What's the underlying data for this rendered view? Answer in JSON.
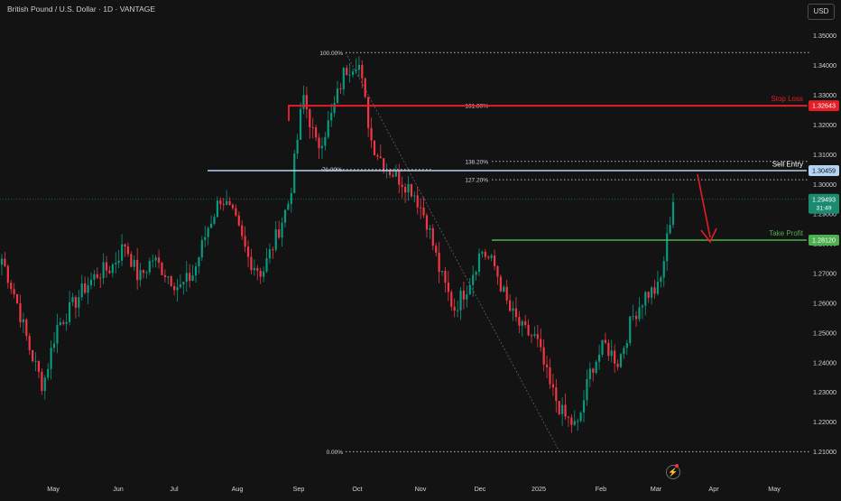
{
  "header": {
    "title": "British Pound / U.S. Dollar · 1D · VANTAGE",
    "currency_button": "USD"
  },
  "colors": {
    "background": "#131313",
    "up": "#089981",
    "down": "#f23645",
    "stop": "#e21f26",
    "entry": "#b3d4f4",
    "target": "#4caf50",
    "current": "#1b8b6f",
    "text": "#d1d4dc"
  },
  "chart_data": {
    "type": "candlestick",
    "title": "British Pound / U.S. Dollar · 1D · VANTAGE",
    "ylim": [
      1.205,
      1.357
    ],
    "x_tick_labels": [
      "May",
      "Jun",
      "Jul",
      "Aug",
      "Sep",
      "Oct",
      "Nov",
      "Dec",
      "2025",
      "Feb",
      "Mar",
      "Apr",
      "May"
    ],
    "y_tick_labels": [
      "1.35000",
      "1.34000",
      "1.33000",
      "1.32000",
      "1.31000",
      "1.30000",
      "1.29000",
      "1.28000",
      "1.27000",
      "1.26000",
      "1.25000",
      "1.24000",
      "1.23000",
      "1.22000",
      "1.21000"
    ],
    "y_ticks": [
      1.35,
      1.34,
      1.33,
      1.32,
      1.31,
      1.3,
      1.29,
      1.28,
      1.27,
      1.26,
      1.25,
      1.24,
      1.23,
      1.22,
      1.21
    ],
    "anchors": [
      1.275,
      1.262,
      1.245,
      1.232,
      1.252,
      1.258,
      1.265,
      1.27,
      1.272,
      1.28,
      1.268,
      1.275,
      1.27,
      1.265,
      1.27,
      1.285,
      1.296,
      1.288,
      1.275,
      1.27,
      1.282,
      1.295,
      1.33,
      1.312,
      1.322,
      1.338,
      1.342,
      1.314,
      1.306,
      1.302,
      1.298,
      1.288,
      1.27,
      1.258,
      1.266,
      1.278,
      1.272,
      1.258,
      1.251,
      1.248,
      1.232,
      1.222,
      1.218,
      1.238,
      1.246,
      1.24,
      1.255,
      1.263,
      1.265,
      1.295
    ],
    "fibonacci": [
      {
        "level": "100.00%",
        "price": 1.3443
      },
      {
        "level": "161.80%",
        "price": 1.3264
      },
      {
        "level": "138.20%",
        "price": 1.3077
      },
      {
        "level": "127.20%",
        "price": 1.3015
      },
      {
        "level": "71.00%",
        "price": 1.305
      },
      {
        "level": "0.00%",
        "price": 1.21
      }
    ],
    "levels": {
      "stop_loss": {
        "label": "Stop Loss",
        "price": "1.32643",
        "value": 1.32643
      },
      "sell_entry": {
        "label": "Sell Entry",
        "price": "1.30459",
        "value": 1.30459
      },
      "take_profit": {
        "label": "Take Profit",
        "price": "1.28120",
        "value": 1.2812
      },
      "current": {
        "price": "1.29493",
        "countdown": "31:49",
        "value": 1.29493
      }
    }
  }
}
